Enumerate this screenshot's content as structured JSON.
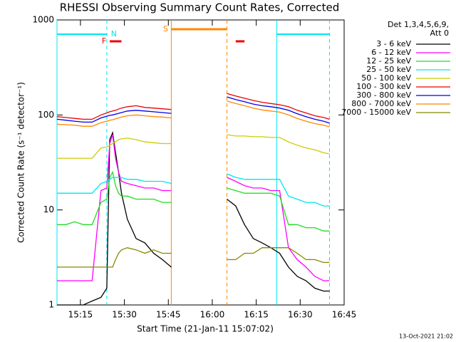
{
  "chart_data": {
    "type": "line",
    "title": "RHESSI Observing Summary Count Rates, Corrected",
    "y_label": "Corrected Count Rate (s⁻¹ detector⁻¹)",
    "x_label": "Start Time (21-Jan-11 15:07:02)",
    "timestamp": "13-Oct-2021 21:02",
    "legend_title": [
      "Det 1,3,4,5,6,9,",
      "Att 0"
    ],
    "log_y": true,
    "ylim": [
      1,
      1000
    ],
    "yticks": [
      1,
      10,
      100,
      1000
    ],
    "xlim": [
      "15:07",
      "16:45"
    ],
    "xticks": [
      "15:15",
      "15:30",
      "15:45",
      "16:00",
      "16:15",
      "16:30",
      "16:45"
    ],
    "x": [
      "15:07",
      "15:10",
      "15:13",
      "15:16",
      "15:19",
      "15:22",
      "15:24",
      "15:25",
      "15:26",
      "15:27",
      "15:28",
      "15:29",
      "15:31",
      "15:34",
      "15:37",
      "15:40",
      "15:43",
      "15:46",
      "15:55",
      "16:05",
      "16:08",
      "16:11",
      "16:14",
      "16:17",
      "16:20",
      "16:23",
      "16:26",
      "16:29",
      "16:32",
      "16:35",
      "16:38",
      "16:40"
    ],
    "series": [
      {
        "name": "3 - 6 keV",
        "color": "#000000",
        "values": [
          1,
          1,
          1,
          1,
          1.1,
          1.2,
          1.5,
          55,
          65,
          40,
          25,
          15,
          8,
          5,
          4.5,
          3.5,
          3,
          2.5,
          null,
          13,
          11,
          7,
          5,
          4.5,
          4,
          3.5,
          2.5,
          2,
          1.8,
          1.5,
          1.4,
          1.4
        ]
      },
      {
        "name": "6 - 12 keV",
        "color": "#ff00ff",
        "values": [
          1.8,
          1.8,
          1.8,
          1.8,
          1.8,
          16,
          17,
          50,
          62,
          35,
          25,
          20,
          19,
          18,
          17,
          17,
          16,
          16,
          null,
          22,
          20,
          18,
          17,
          17,
          16,
          16,
          4,
          3,
          2.5,
          2,
          1.8,
          1.8
        ]
      },
      {
        "name": "12 - 25 keV",
        "color": "#22dd22",
        "values": [
          7,
          7,
          7.5,
          7,
          7,
          12,
          13,
          22,
          25,
          18,
          15,
          14,
          14,
          13,
          13,
          13,
          12,
          12,
          null,
          17,
          16,
          15,
          15,
          15,
          15,
          14,
          7,
          7,
          6.5,
          6.5,
          6,
          6
        ]
      },
      {
        "name": "25 - 50 keV",
        "color": "#00e5ee",
        "values": [
          15,
          15,
          15,
          15,
          15,
          19,
          20,
          21,
          22,
          22,
          22,
          22,
          21,
          21,
          20,
          20,
          20,
          19,
          null,
          24,
          22,
          21,
          21,
          21,
          21,
          21,
          14,
          13,
          12,
          12,
          11,
          11
        ]
      },
      {
        "name": "50 - 100 keV",
        "color": "#cccc00",
        "values": [
          35,
          35,
          35,
          35,
          35,
          45,
          46,
          48,
          50,
          52,
          55,
          56,
          57,
          55,
          52,
          51,
          50,
          50,
          null,
          62,
          60,
          60,
          59,
          59,
          58,
          58,
          52,
          48,
          45,
          43,
          40,
          39
        ]
      },
      {
        "name": "100 - 300 keV",
        "color": "#ee0000",
        "values": [
          96,
          94,
          92,
          90,
          90,
          100,
          105,
          108,
          110,
          112,
          115,
          118,
          122,
          125,
          120,
          118,
          116,
          114,
          null,
          168,
          158,
          150,
          142,
          136,
          132,
          128,
          122,
          112,
          105,
          98,
          94,
          90
        ]
      },
      {
        "name": "300 - 800 keV",
        "color": "#0000ee",
        "values": [
          90,
          88,
          86,
          84,
          84,
          93,
          97,
          99,
          100,
          102,
          104,
          106,
          110,
          112,
          110,
          108,
          106,
          104,
          null,
          155,
          145,
          138,
          130,
          125,
          122,
          118,
          112,
          103,
          96,
          90,
          86,
          82
        ]
      },
      {
        "name": "800 - 7000 keV",
        "color": "#ff8800",
        "values": [
          80,
          79,
          78,
          76,
          76,
          83,
          86,
          88,
          89,
          91,
          93,
          95,
          98,
          100,
          98,
          96,
          95,
          93,
          null,
          140,
          132,
          125,
          118,
          113,
          110,
          107,
          100,
          92,
          86,
          81,
          78,
          75
        ]
      },
      {
        "name": "7000 - 15000 keV",
        "color": "#888800",
        "values": [
          2.5,
          2.5,
          2.5,
          2.5,
          2.5,
          2.5,
          2.5,
          2.5,
          2.5,
          3,
          3.5,
          3.8,
          4,
          3.8,
          3.5,
          3.8,
          3.5,
          3.5,
          null,
          3,
          3,
          3.5,
          3.5,
          4,
          4,
          4,
          4,
          3.5,
          3,
          3,
          2.8,
          2.8
        ]
      }
    ],
    "flags": [
      {
        "label": "N",
        "color": "#00e5ee",
        "intervals": [
          [
            "15:07",
            "15:24"
          ],
          [
            "16:22",
            "16:40"
          ]
        ]
      },
      {
        "label": "F",
        "color": "#ee0000",
        "intervals": [
          [
            "15:25",
            "15:29"
          ],
          [
            "16:08",
            "16:11"
          ]
        ]
      },
      {
        "label": "S",
        "color": "#ff8800",
        "intervals": [
          [
            "15:46",
            "16:05"
          ]
        ]
      }
    ]
  }
}
